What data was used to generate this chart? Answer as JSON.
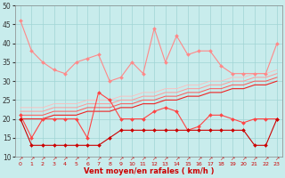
{
  "xlabel": "Vent moyen/en rafales ( km/h )",
  "xlim": [
    -0.5,
    23.5
  ],
  "ylim": [
    10,
    50
  ],
  "yticks": [
    10,
    15,
    20,
    25,
    30,
    35,
    40,
    45,
    50
  ],
  "xticks": [
    0,
    1,
    2,
    3,
    4,
    5,
    6,
    7,
    8,
    9,
    10,
    11,
    12,
    13,
    14,
    15,
    16,
    17,
    18,
    19,
    20,
    21,
    22,
    23
  ],
  "bg_color": "#c8ecec",
  "grid_color": "#a0d4d4",
  "series": [
    {
      "color": "#ff8888",
      "lw": 0.8,
      "marker": "D",
      "ms": 2.0,
      "y": [
        46,
        38,
        35,
        33,
        32,
        35,
        36,
        37,
        30,
        31,
        35,
        32,
        44,
        35,
        42,
        37,
        38,
        38,
        34,
        32,
        32,
        32,
        32,
        40
      ]
    },
    {
      "color": "#ff4444",
      "lw": 0.8,
      "marker": "D",
      "ms": 2.0,
      "y": [
        21,
        15,
        20,
        20,
        20,
        20,
        15,
        27,
        25,
        20,
        20,
        20,
        22,
        23,
        22,
        17,
        18,
        21,
        21,
        20,
        19,
        20,
        20,
        20
      ]
    },
    {
      "color": "#cc0000",
      "lw": 0.8,
      "marker": "D",
      "ms": 2.0,
      "y": [
        20,
        13,
        13,
        13,
        13,
        13,
        13,
        13,
        15,
        17,
        17,
        17,
        17,
        17,
        17,
        17,
        17,
        17,
        17,
        17,
        17,
        13,
        13,
        20
      ]
    },
    {
      "color": "#ee2222",
      "lw": 0.8,
      "marker": null,
      "ms": 0,
      "y": [
        20,
        20,
        20,
        21,
        21,
        21,
        22,
        22,
        22,
        23,
        23,
        24,
        24,
        25,
        25,
        26,
        26,
        27,
        27,
        28,
        28,
        29,
        29,
        30
      ]
    },
    {
      "color": "#ff5555",
      "lw": 0.7,
      "marker": null,
      "ms": 0,
      "y": [
        21,
        21,
        21,
        22,
        22,
        22,
        23,
        23,
        23,
        24,
        24,
        25,
        25,
        26,
        26,
        27,
        27,
        28,
        28,
        29,
        29,
        30,
        30,
        31
      ]
    },
    {
      "color": "#ff9999",
      "lw": 0.7,
      "marker": null,
      "ms": 0,
      "y": [
        22,
        22,
        22,
        23,
        23,
        23,
        24,
        24,
        24,
        25,
        25,
        26,
        26,
        27,
        27,
        28,
        28,
        29,
        29,
        30,
        30,
        31,
        31,
        32
      ]
    },
    {
      "color": "#ffbbbb",
      "lw": 0.6,
      "marker": null,
      "ms": 0,
      "y": [
        23,
        23,
        23,
        24,
        24,
        24,
        25,
        25,
        25,
        26,
        26,
        27,
        27,
        28,
        28,
        29,
        29,
        30,
        30,
        31,
        31,
        32,
        32,
        33
      ]
    }
  ],
  "arrow_color": "#cc0000",
  "xlabel_color": "#cc0000"
}
